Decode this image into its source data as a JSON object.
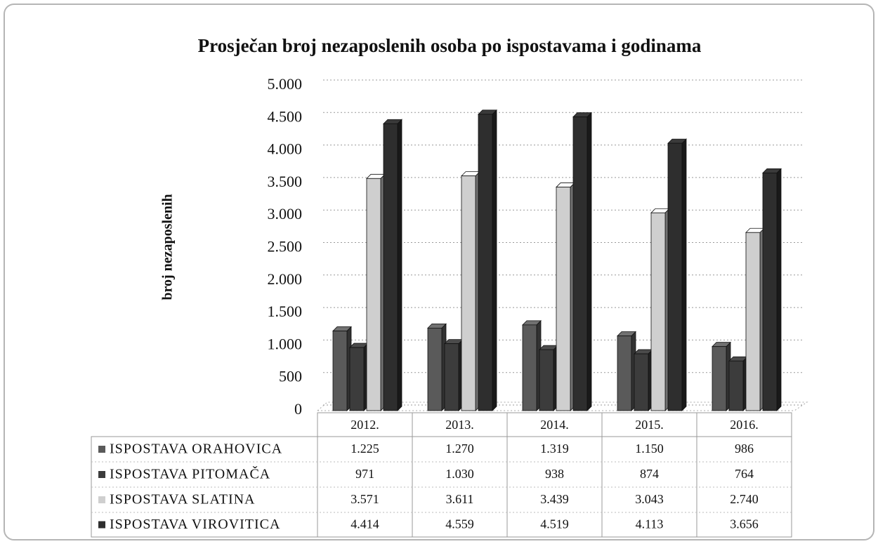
{
  "chart_data": {
    "type": "bar3d",
    "title": "Prosječan broj nezaposlenih osoba po ispostavama i godinama",
    "y_label": "broj nezaposlenih",
    "categories": [
      "2012.",
      "2013.",
      "2014.",
      "2015.",
      "2016."
    ],
    "series": [
      {
        "name": "ISPOSTAVA ORAHOVICA",
        "color": "#5a5a5a",
        "values": [
          1225,
          1270,
          1319,
          1150,
          986
        ],
        "value_labels": [
          "1.225",
          "1.270",
          "1.319",
          "1.150",
          "986"
        ]
      },
      {
        "name": "ISPOSTAVA PITOMAČA",
        "color": "#3c3c3c",
        "values": [
          971,
          1030,
          938,
          874,
          764
        ],
        "value_labels": [
          "971",
          "1.030",
          "938",
          "874",
          "764"
        ]
      },
      {
        "name": "ISPOSTAVA SLATINA",
        "color": "#cfcfcf",
        "values": [
          3571,
          3611,
          3439,
          3043,
          2740
        ],
        "value_labels": [
          "3.571",
          "3.611",
          "3.439",
          "3.043",
          "2.740"
        ]
      },
      {
        "name": "ISPOSTAVA VIROVITICA",
        "color": "#2e2e2e",
        "values": [
          4414,
          4559,
          4519,
          4113,
          3656
        ],
        "value_labels": [
          "4.414",
          "4.559",
          "4.519",
          "4.113",
          "3.656"
        ]
      }
    ],
    "ylim": [
      0,
      5000
    ],
    "yticks": [
      0,
      500,
      {
        "value": 1000,
        "label": "1.000"
      },
      {
        "value": 1500,
        "label": "1.500"
      },
      {
        "value": 2000,
        "label": "2.000"
      },
      {
        "value": 2500,
        "label": "2.500"
      },
      {
        "value": 3000,
        "label": "3.000"
      },
      {
        "value": 3500,
        "label": "3.500"
      },
      {
        "value": 4000,
        "label": "4.000"
      },
      {
        "value": 4500,
        "label": "4.500"
      },
      {
        "value": 5000,
        "label": "5.000"
      }
    ],
    "grid": true
  }
}
